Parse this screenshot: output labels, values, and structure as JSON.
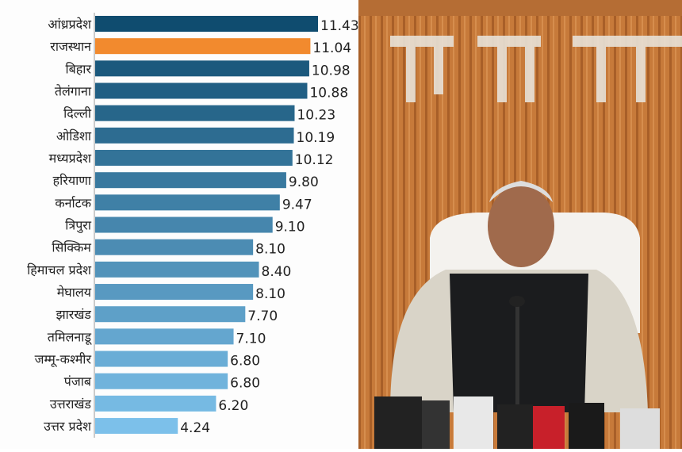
{
  "chart_data": {
    "type": "bar",
    "orientation": "horizontal",
    "categories": [
      "आंध्रप्रदेश",
      "राजस्थान",
      "बिहार",
      "तेलंगाना",
      "दिल्ली",
      "ओडिशा",
      "मध्यप्रदेश",
      "हरियाणा",
      "कर्नाटक",
      "त्रिपुरा",
      "सिक्किम",
      "हिमाचल प्रदेश",
      "मेघालय",
      "झारखंड",
      "तमिलनाडू",
      "जम्मू-कश्मीर",
      "पंजाब",
      "उत्तराखंड",
      "उत्तर प्रदेश"
    ],
    "values": [
      11.43,
      11.04,
      10.98,
      10.88,
      10.23,
      10.19,
      10.12,
      9.8,
      9.47,
      9.1,
      8.1,
      8.4,
      8.1,
      7.7,
      7.1,
      6.8,
      6.8,
      6.2,
      4.24
    ],
    "value_labels": [
      "11.43",
      "11.04",
      "10.98",
      "10.88",
      "10.23",
      "10.19",
      "10.12",
      "9.80",
      "9.47",
      "9.10",
      "8.10",
      "8.40",
      "8.10",
      "7.70",
      "7.10",
      "6.80",
      "6.80",
      "6.20",
      "4.24"
    ],
    "highlight_category": "राजस्थान",
    "colors": {
      "highlight": "#f28a2e",
      "bar_dark": "#0f4c6f",
      "bar_light": "#7cc0ea"
    },
    "xlim": [
      0,
      11.43
    ],
    "grid": false
  },
  "photo": {
    "description_icon": "press-conference-photo"
  }
}
